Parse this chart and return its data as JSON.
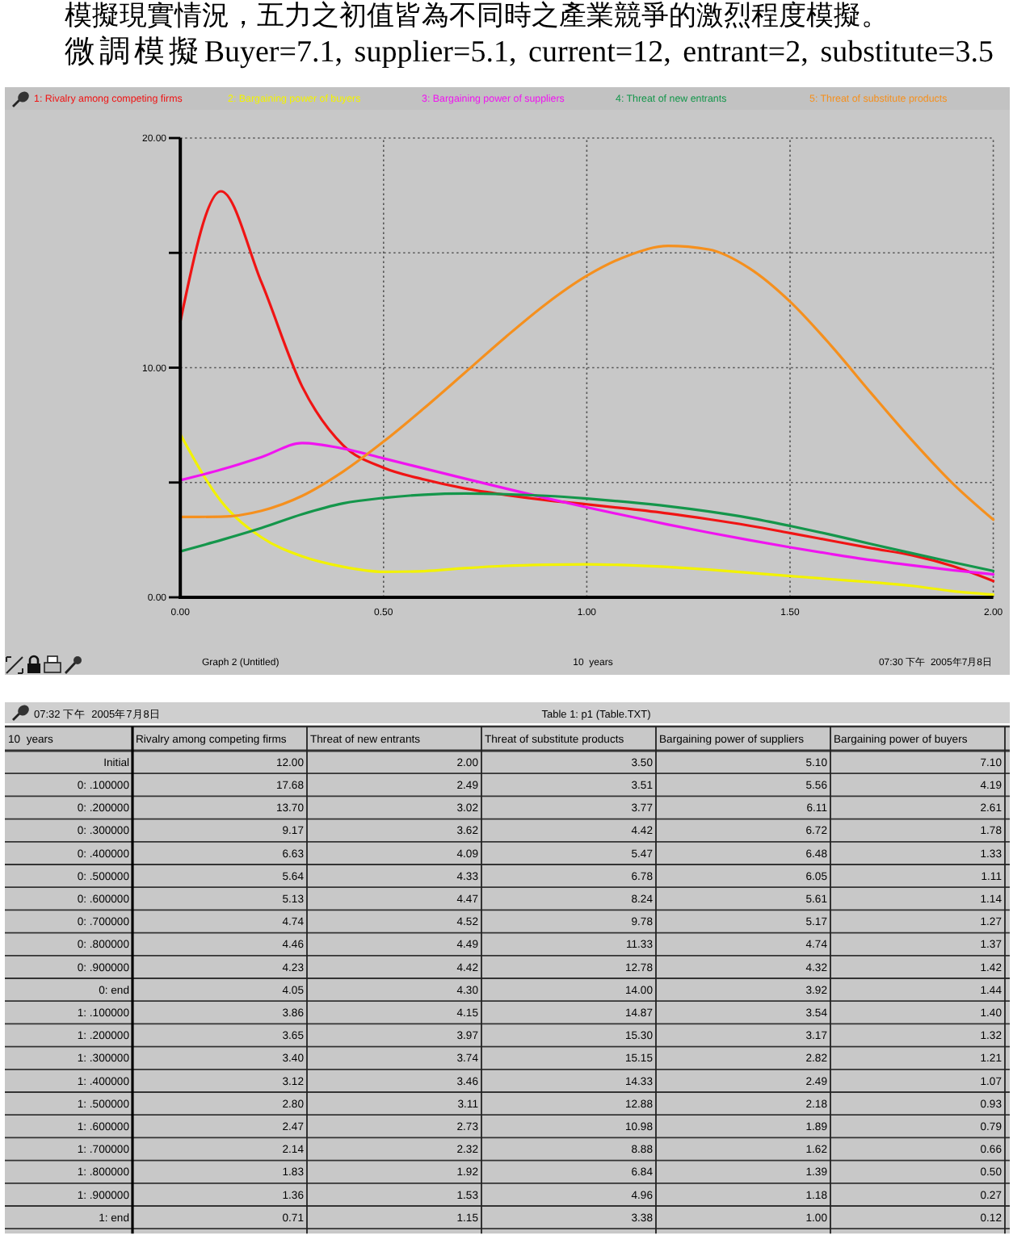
{
  "chart_data": [
    {
      "type": "line",
      "title": "模擬現實情況，五力之初值皆為不同時之產業競爭的激烈程度模擬。",
      "subtitle": "微調模擬Buyer=7.1, supplier=5.1, current=12, entrant=2, substitute=3.5",
      "xlabel": "10  years",
      "annotations": [
        "Graph 2 (Untitled)",
        "07:30 下午  2005年7月8日"
      ],
      "x": [
        0,
        0.1,
        0.2,
        0.3,
        0.4,
        0.5,
        0.6,
        0.7,
        0.8,
        0.9,
        1.0,
        1.1,
        1.2,
        1.3,
        1.4,
        1.5,
        1.6,
        1.7,
        1.8,
        1.9,
        2.0
      ],
      "series": [
        {
          "name": "1: Rivalry among competing firms",
          "color": "#f01414",
          "values": [
            12.0,
            17.68,
            13.7,
            9.17,
            6.63,
            5.64,
            5.13,
            4.74,
            4.46,
            4.23,
            4.05,
            3.86,
            3.65,
            3.4,
            3.12,
            2.8,
            2.47,
            2.14,
            1.83,
            1.36,
            0.71
          ]
        },
        {
          "name": "2: Bargaining power of buyers",
          "color": "#f2f200",
          "values": [
            7.1,
            4.19,
            2.61,
            1.78,
            1.33,
            1.11,
            1.14,
            1.27,
            1.37,
            1.42,
            1.44,
            1.4,
            1.32,
            1.21,
            1.07,
            0.93,
            0.79,
            0.66,
            0.5,
            0.27,
            0.12
          ]
        },
        {
          "name": "3: Bargaining power of suppliers",
          "color": "#f014f0",
          "values": [
            5.1,
            5.56,
            6.11,
            6.72,
            6.48,
            6.05,
            5.61,
            5.17,
            4.74,
            4.32,
            3.92,
            3.54,
            3.17,
            2.82,
            2.49,
            2.18,
            1.89,
            1.62,
            1.39,
            1.18,
            1.0
          ]
        },
        {
          "name": "4: Threat of new entrants",
          "color": "#14964b",
          "values": [
            2.0,
            2.49,
            3.02,
            3.62,
            4.09,
            4.33,
            4.47,
            4.52,
            4.49,
            4.42,
            4.3,
            4.15,
            3.97,
            3.74,
            3.46,
            3.11,
            2.73,
            2.32,
            1.92,
            1.53,
            1.15
          ]
        },
        {
          "name": "5: Threat of substitute products",
          "color": "#f5901e",
          "values": [
            3.5,
            3.51,
            3.77,
            4.42,
            5.47,
            6.78,
            8.24,
            9.78,
            11.33,
            12.78,
            14.0,
            14.87,
            15.3,
            15.15,
            14.33,
            12.88,
            10.98,
            8.88,
            6.84,
            4.96,
            3.38
          ]
        }
      ],
      "xlim": [
        0,
        2
      ],
      "xticks": [
        {
          "value": 0,
          "label": "0.00"
        },
        {
          "value": 0.5,
          "label": "0.50"
        },
        {
          "value": 1,
          "label": "1.00"
        },
        {
          "value": 1.5,
          "label": "1.50"
        },
        {
          "value": 2,
          "label": "2.00"
        }
      ],
      "ylim": [
        0,
        20
      ],
      "yticks": [
        {
          "value": 0,
          "label": "0.00"
        },
        {
          "value": 5,
          "label": null
        },
        {
          "value": 10,
          "label": "10.00"
        },
        {
          "value": 15,
          "label": null
        },
        {
          "value": 20,
          "label": "20.00"
        }
      ],
      "grid": true,
      "legend": "top"
    },
    {
      "type": "other",
      "title": "Table 1: p1 (Table.TXT)",
      "xlabel": "10  years",
      "annotations": [
        "07:32 下午  2005年7月8日"
      ],
      "categories": [
        "Initial",
        "0: .100000",
        "0: .200000",
        "0: .300000",
        "0: .400000",
        "0: .500000",
        "0: .600000",
        "0: .700000",
        "0: .800000",
        "0: .900000",
        "0: end",
        "1: .100000",
        "1: .200000",
        "1: .300000",
        "1: .400000",
        "1: .500000",
        "1: .600000",
        "1: .700000",
        "1: .800000",
        "1: .900000",
        "1: end"
      ],
      "series": [
        {
          "name": "Rivalry among competing firms",
          "values": [
            12.0,
            17.68,
            13.7,
            9.17,
            6.63,
            5.64,
            5.13,
            4.74,
            4.46,
            4.23,
            4.05,
            3.86,
            3.65,
            3.4,
            3.12,
            2.8,
            2.47,
            2.14,
            1.83,
            1.36,
            0.71
          ],
          "value_labels": [
            "12.00",
            "17.68",
            "13.70",
            "9.17",
            "6.63",
            "5.64",
            "5.13",
            "4.74",
            "4.46",
            "4.23",
            "4.05",
            "3.86",
            "3.65",
            "3.40",
            "3.12",
            "2.80",
            "2.47",
            "2.14",
            "1.83",
            "1.36",
            "0.71"
          ]
        },
        {
          "name": "Threat of new entrants",
          "values": [
            2.0,
            2.49,
            3.02,
            3.62,
            4.09,
            4.33,
            4.47,
            4.52,
            4.49,
            4.42,
            4.3,
            4.15,
            3.97,
            3.74,
            3.46,
            3.11,
            2.73,
            2.32,
            1.92,
            1.53,
            1.15
          ],
          "value_labels": [
            "2.00",
            "2.49",
            "3.02",
            "3.62",
            "4.09",
            "4.33",
            "4.47",
            "4.52",
            "4.49",
            "4.42",
            "4.30",
            "4.15",
            "3.97",
            "3.74",
            "3.46",
            "3.11",
            "2.73",
            "2.32",
            "1.92",
            "1.53",
            "1.15"
          ]
        },
        {
          "name": "Threat of substitute products",
          "values": [
            3.5,
            3.51,
            3.77,
            4.42,
            5.47,
            6.78,
            8.24,
            9.78,
            11.33,
            12.78,
            14.0,
            14.87,
            15.3,
            15.15,
            14.33,
            12.88,
            10.98,
            8.88,
            6.84,
            4.96,
            3.38
          ],
          "value_labels": [
            "3.50",
            "3.51",
            "3.77",
            "4.42",
            "5.47",
            "6.78",
            "8.24",
            "9.78",
            "11.33",
            "12.78",
            "14.00",
            "14.87",
            "15.30",
            "15.15",
            "14.33",
            "12.88",
            "10.98",
            "8.88",
            "6.84",
            "4.96",
            "3.38"
          ]
        },
        {
          "name": "Bargaining power of suppliers",
          "values": [
            5.1,
            5.56,
            6.11,
            6.72,
            6.48,
            6.05,
            5.61,
            5.17,
            4.74,
            4.32,
            3.92,
            3.54,
            3.17,
            2.82,
            2.49,
            2.18,
            1.89,
            1.62,
            1.39,
            1.18,
            1.0
          ],
          "value_labels": [
            "5.10",
            "5.56",
            "6.11",
            "6.72",
            "6.48",
            "6.05",
            "5.61",
            "5.17",
            "4.74",
            "4.32",
            "3.92",
            "3.54",
            "3.17",
            "2.82",
            "2.49",
            "2.18",
            "1.89",
            "1.62",
            "1.39",
            "1.18",
            "1.00"
          ]
        },
        {
          "name": "Bargaining power of buyers",
          "values": [
            7.1,
            4.19,
            2.61,
            1.78,
            1.33,
            1.11,
            1.14,
            1.27,
            1.37,
            1.42,
            1.44,
            1.4,
            1.32,
            1.21,
            1.07,
            0.93,
            0.79,
            0.66,
            0.5,
            0.27,
            0.12
          ],
          "value_labels": [
            "7.10",
            "4.19",
            "2.61",
            "1.78",
            "1.33",
            "1.11",
            "1.14",
            "1.27",
            "1.37",
            "1.42",
            "1.44",
            "1.40",
            "1.32",
            "1.21",
            "1.07",
            "0.93",
            "0.79",
            "0.66",
            "0.50",
            "0.27",
            "0.12"
          ]
        }
      ]
    }
  ]
}
